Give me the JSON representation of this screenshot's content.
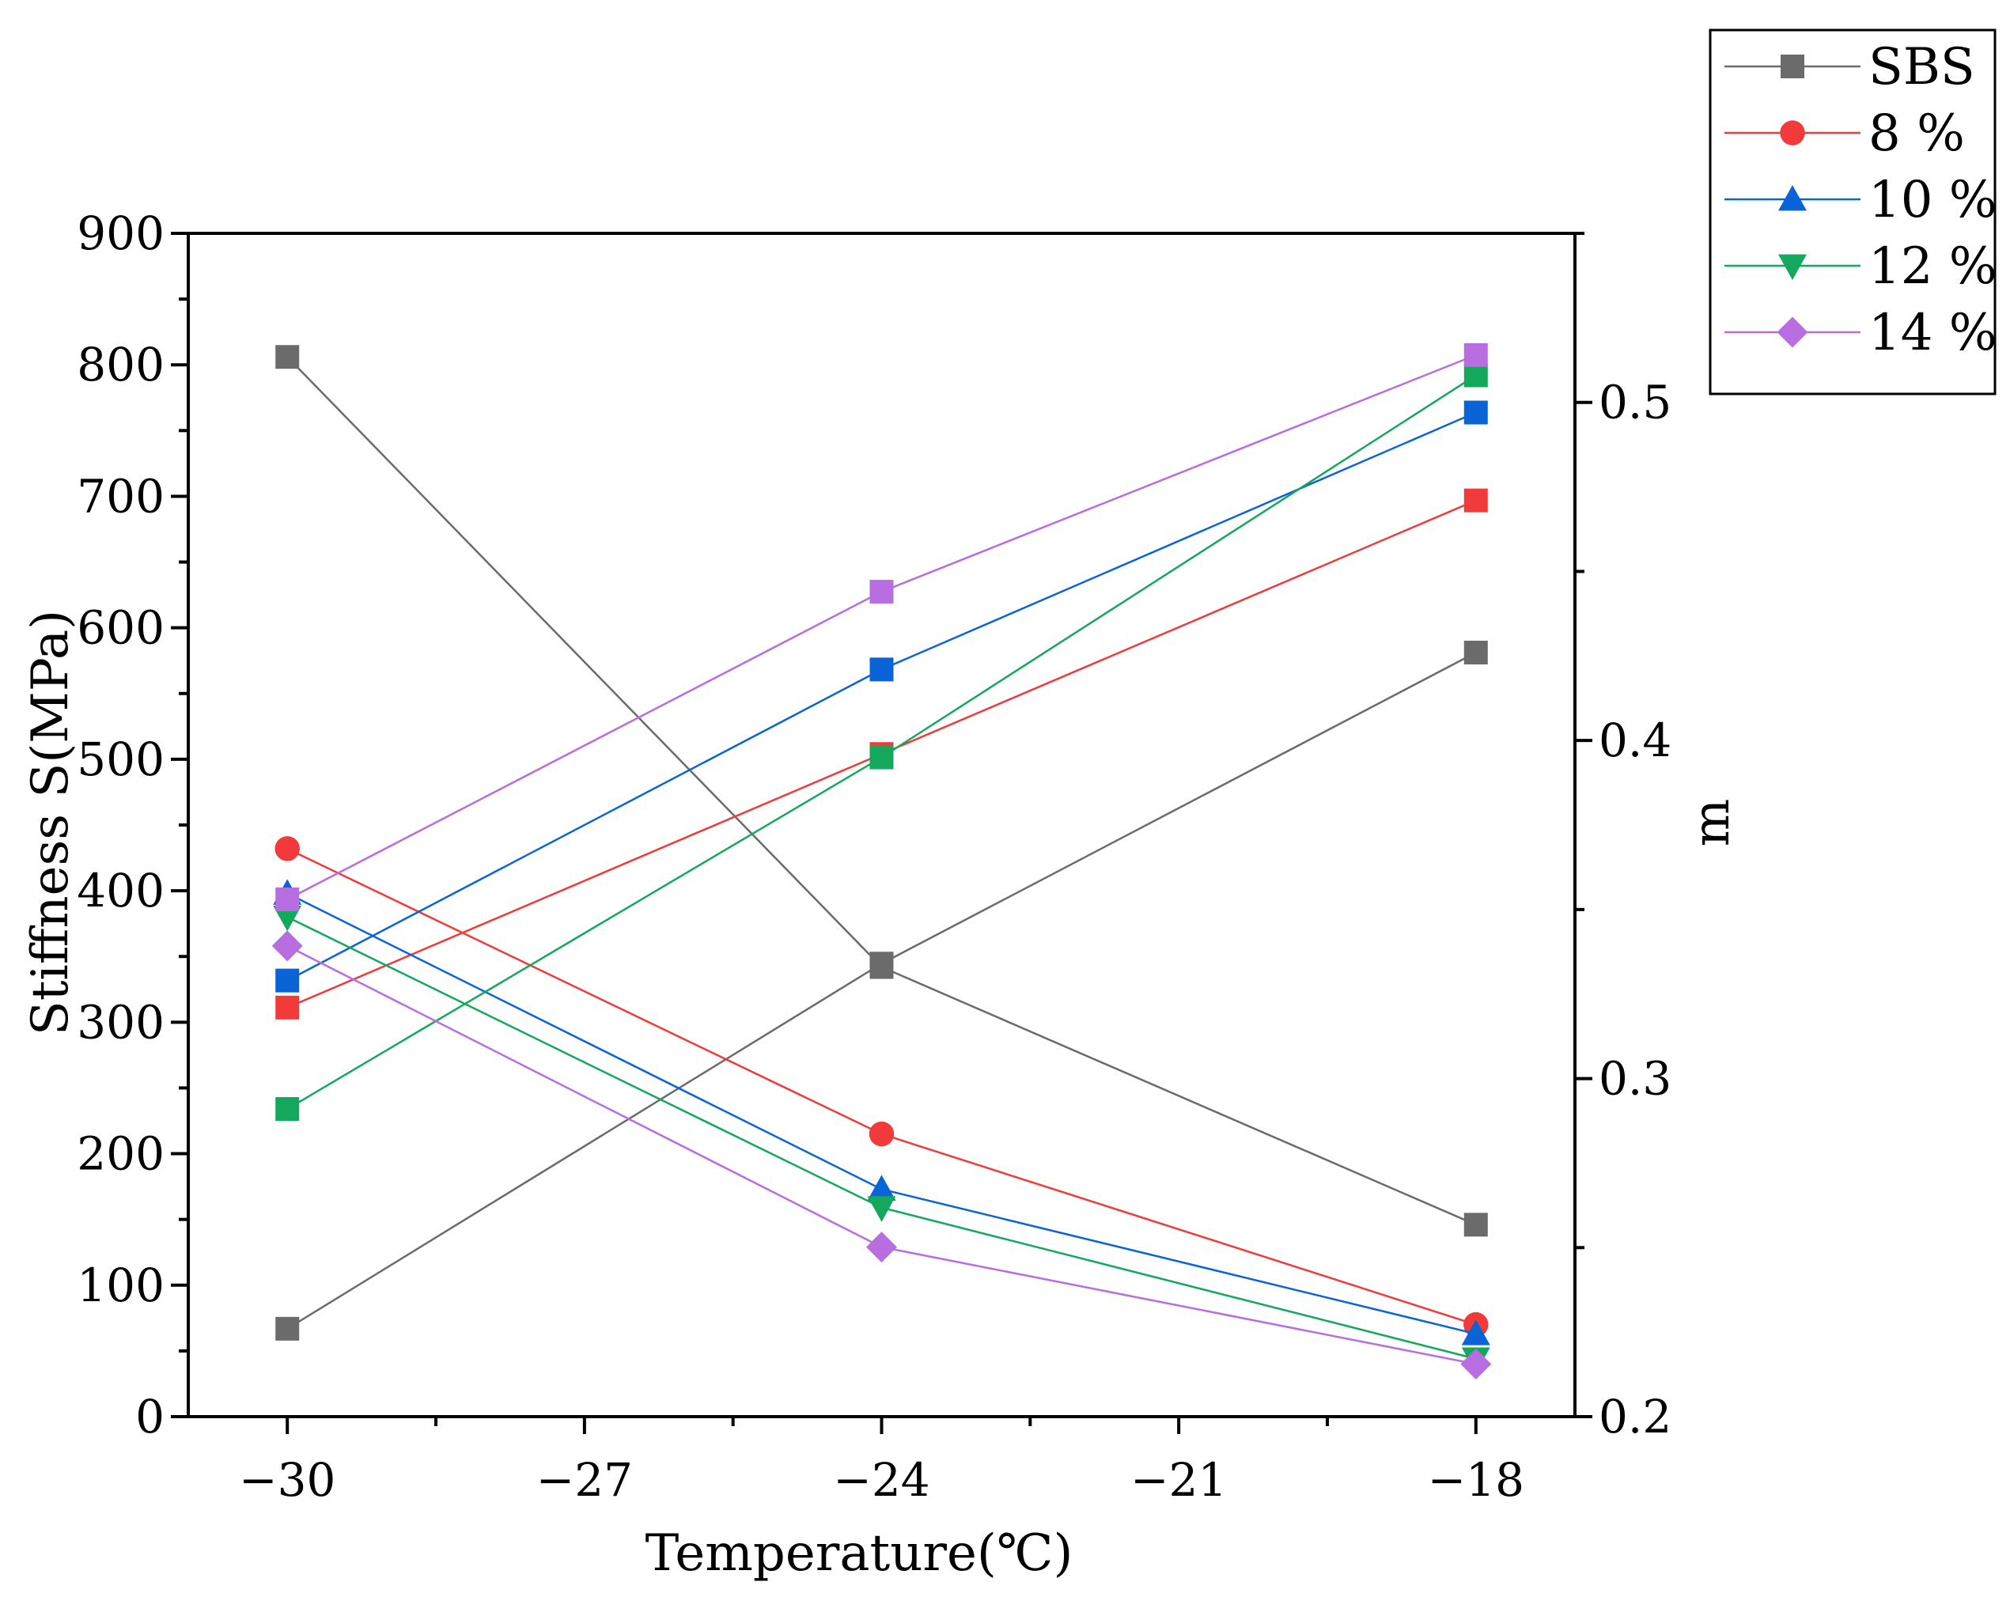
{
  "chart_data": {
    "type": "line",
    "title": "",
    "xlabel": "Temperature(℃)",
    "ylabel_left": "Stiffness S(MPa)",
    "ylabel_right": "m",
    "x_ticks": [
      "-30",
      "-27",
      "-24",
      "-21",
      "-18"
    ],
    "y_left_ticks": [
      "0",
      "100",
      "200",
      "300",
      "400",
      "500",
      "600",
      "700",
      "800",
      "900"
    ],
    "y_right_ticks": [
      "0.2",
      "0.3",
      "0.4",
      "0.5"
    ],
    "xlim": [
      -31,
      -17
    ],
    "ylim_left": [
      0,
      900
    ],
    "ylim_right": [
      0.2,
      0.55
    ],
    "x": [
      -30,
      -24,
      -18
    ],
    "legend_position": "top-right, outside plot",
    "series": [
      {
        "name": "SBS",
        "color": "#6b6b6b",
        "marker": "square",
        "stiffness": [
          806,
          342,
          146
        ],
        "m": [
          0.226,
          0.334,
          0.426
        ]
      },
      {
        "name": "8 %",
        "color": "#f23a3a",
        "marker": "circle",
        "stiffness": [
          432,
          215,
          70
        ],
        "m": [
          0.321,
          0.396,
          0.471
        ]
      },
      {
        "name": "10 %",
        "color": "#0a64d8",
        "marker": "triangle-up",
        "stiffness": [
          398,
          173,
          63
        ],
        "m": [
          0.329,
          0.421,
          0.497
        ]
      },
      {
        "name": "12 %",
        "color": "#14a85c",
        "marker": "triangle-down",
        "stiffness": [
          380,
          159,
          44
        ],
        "m": [
          0.291,
          0.395,
          0.508
        ]
      },
      {
        "name": "14 %",
        "color": "#b86ee0",
        "marker": "diamond",
        "stiffness": [
          358,
          129,
          40
        ],
        "m": [
          0.353,
          0.444,
          0.514
        ]
      }
    ]
  }
}
